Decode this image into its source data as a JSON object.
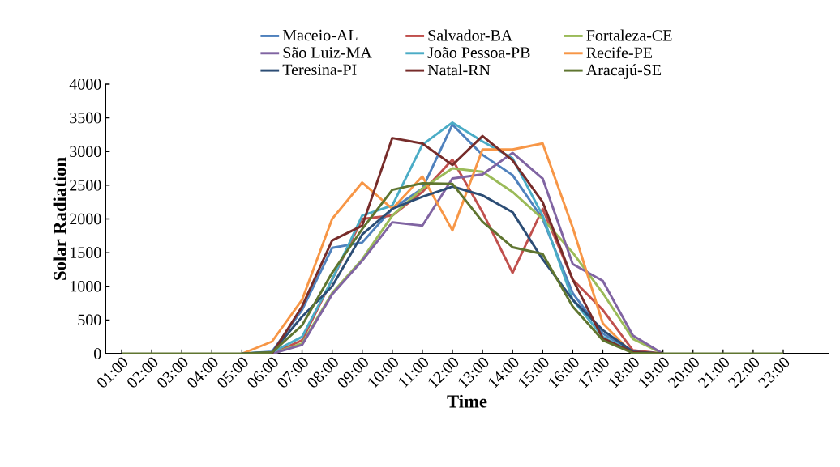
{
  "chart_data": {
    "type": "line",
    "xlabel": "Time",
    "ylabel": "Solar Radiation",
    "categories": [
      "01:00",
      "02:00",
      "03:00",
      "04:00",
      "05:00",
      "06:00",
      "07:00",
      "08:00",
      "09:00",
      "10:00",
      "11:00",
      "12:00",
      "13:00",
      "14:00",
      "15:00",
      "16:00",
      "17:00",
      "18:00",
      "19:00",
      "20:00",
      "21:00",
      "22:00",
      "23:00"
    ],
    "ylim": [
      0,
      4000
    ],
    "yticks": [
      0,
      500,
      1000,
      1500,
      2000,
      2500,
      3000,
      3500,
      4000
    ],
    "grid": false,
    "legend": "top",
    "marker": "none",
    "line_style": "solid",
    "series": [
      {
        "name": "Maceio-AL",
        "color": "#4f81bd",
        "values": [
          null,
          null,
          null,
          null,
          0,
          30,
          650,
          1570,
          1650,
          2150,
          2450,
          3400,
          2950,
          2650,
          2000,
          900,
          300,
          30,
          0,
          null,
          null,
          null,
          null
        ]
      },
      {
        "name": "Salvador-BA",
        "color": "#c0504d",
        "values": [
          null,
          null,
          null,
          null,
          null,
          0,
          200,
          1100,
          2000,
          2050,
          2400,
          2880,
          2100,
          1200,
          2150,
          1100,
          650,
          50,
          0,
          null,
          null,
          null,
          null
        ]
      },
      {
        "name": "Fortaleza-CE",
        "color": "#9bbb59",
        "values": [
          null,
          null,
          null,
          null,
          null,
          0,
          150,
          900,
          1400,
          2050,
          2450,
          2750,
          2700,
          2400,
          2000,
          1500,
          900,
          220,
          0,
          null,
          null,
          null,
          null
        ]
      },
      {
        "name": "São Luiz-MA",
        "color": "#8064a2",
        "values": [
          null,
          null,
          null,
          null,
          null,
          0,
          130,
          880,
          1380,
          1950,
          1900,
          2600,
          2660,
          2980,
          2600,
          1330,
          1080,
          270,
          0,
          null,
          null,
          null,
          null
        ]
      },
      {
        "name": "João Pessoa-PB",
        "color": "#4bacc6",
        "values": [
          null,
          null,
          null,
          null,
          0,
          20,
          250,
          1100,
          2050,
          2200,
          3100,
          3430,
          3150,
          2900,
          2050,
          800,
          250,
          20,
          0,
          null,
          null,
          null,
          null
        ]
      },
      {
        "name": "Recife-PE",
        "color": "#f79646",
        "values": [
          null,
          null,
          null,
          null,
          0,
          180,
          800,
          2000,
          2540,
          2150,
          2630,
          1830,
          3030,
          3030,
          3120,
          1870,
          450,
          0,
          null,
          null,
          null,
          null,
          null
        ]
      },
      {
        "name": "Teresina-PI",
        "color": "#2c4d75",
        "values": [
          null,
          null,
          null,
          null,
          0,
          20,
          550,
          1000,
          1770,
          2150,
          2330,
          2480,
          2350,
          2100,
          1400,
          800,
          350,
          30,
          0,
          null,
          null,
          null,
          null
        ]
      },
      {
        "name": "Natal-RN",
        "color": "#772c2a",
        "values": [
          null,
          null,
          null,
          null,
          null,
          0,
          700,
          1680,
          1900,
          3200,
          3120,
          2800,
          3230,
          2870,
          2250,
          1100,
          230,
          20,
          0,
          null,
          null,
          null,
          null
        ]
      },
      {
        "name": "Aracajú-SE",
        "color": "#5f7530",
        "values": [
          0,
          0,
          0,
          0,
          0,
          20,
          420,
          1200,
          1850,
          2430,
          2530,
          2520,
          1960,
          1580,
          1480,
          700,
          200,
          10,
          0,
          0,
          0,
          0,
          0
        ]
      }
    ]
  }
}
